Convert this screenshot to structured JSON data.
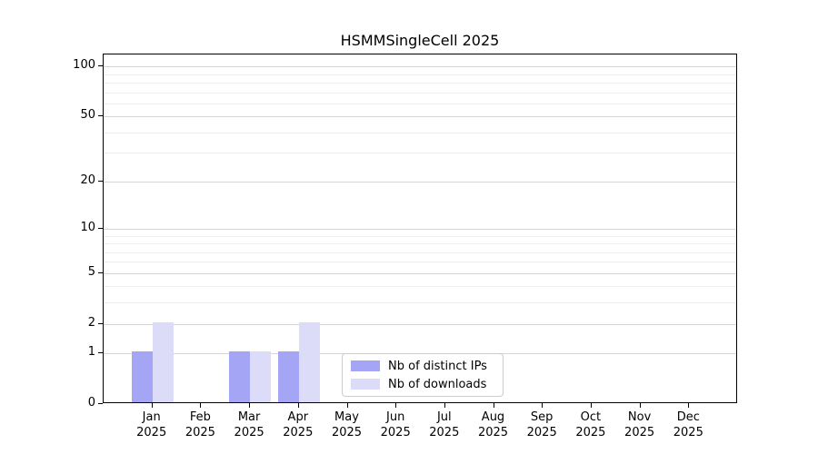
{
  "chart_data": {
    "type": "bar",
    "title": "HSMMSingleCell 2025",
    "xlabel": "",
    "ylabel": "",
    "categories": [
      "Jan 2025",
      "Feb 2025",
      "Mar 2025",
      "Apr 2025",
      "May 2025",
      "Jun 2025",
      "Jul 2025",
      "Aug 2025",
      "Sep 2025",
      "Oct 2025",
      "Nov 2025",
      "Dec 2025"
    ],
    "series": [
      {
        "name": "Nb of distinct IPs",
        "color": "#a5a5f5",
        "values": [
          1,
          0,
          1,
          1,
          0,
          0,
          0,
          0,
          0,
          0,
          0,
          0
        ]
      },
      {
        "name": "Nb of downloads",
        "color": "#dcdcf8",
        "values": [
          2,
          0,
          1,
          2,
          0,
          0,
          0,
          0,
          0,
          0,
          0,
          0
        ]
      }
    ],
    "yscale": "log1p",
    "y_major_ticks": [
      0,
      1,
      2,
      5,
      10,
      20,
      50,
      100
    ],
    "y_minor_ticks": [
      3,
      4,
      6,
      7,
      8,
      9,
      30,
      40,
      60,
      70,
      80,
      90
    ],
    "ylim": [
      0,
      115
    ],
    "grid": "horizontal-only",
    "legend_position": "lower center"
  },
  "colors": {
    "spine": "#000000",
    "grid_major": "#d6d6d6",
    "grid_minor": "#ededed",
    "legend_border": "#cccccc",
    "background": "#ffffff"
  }
}
